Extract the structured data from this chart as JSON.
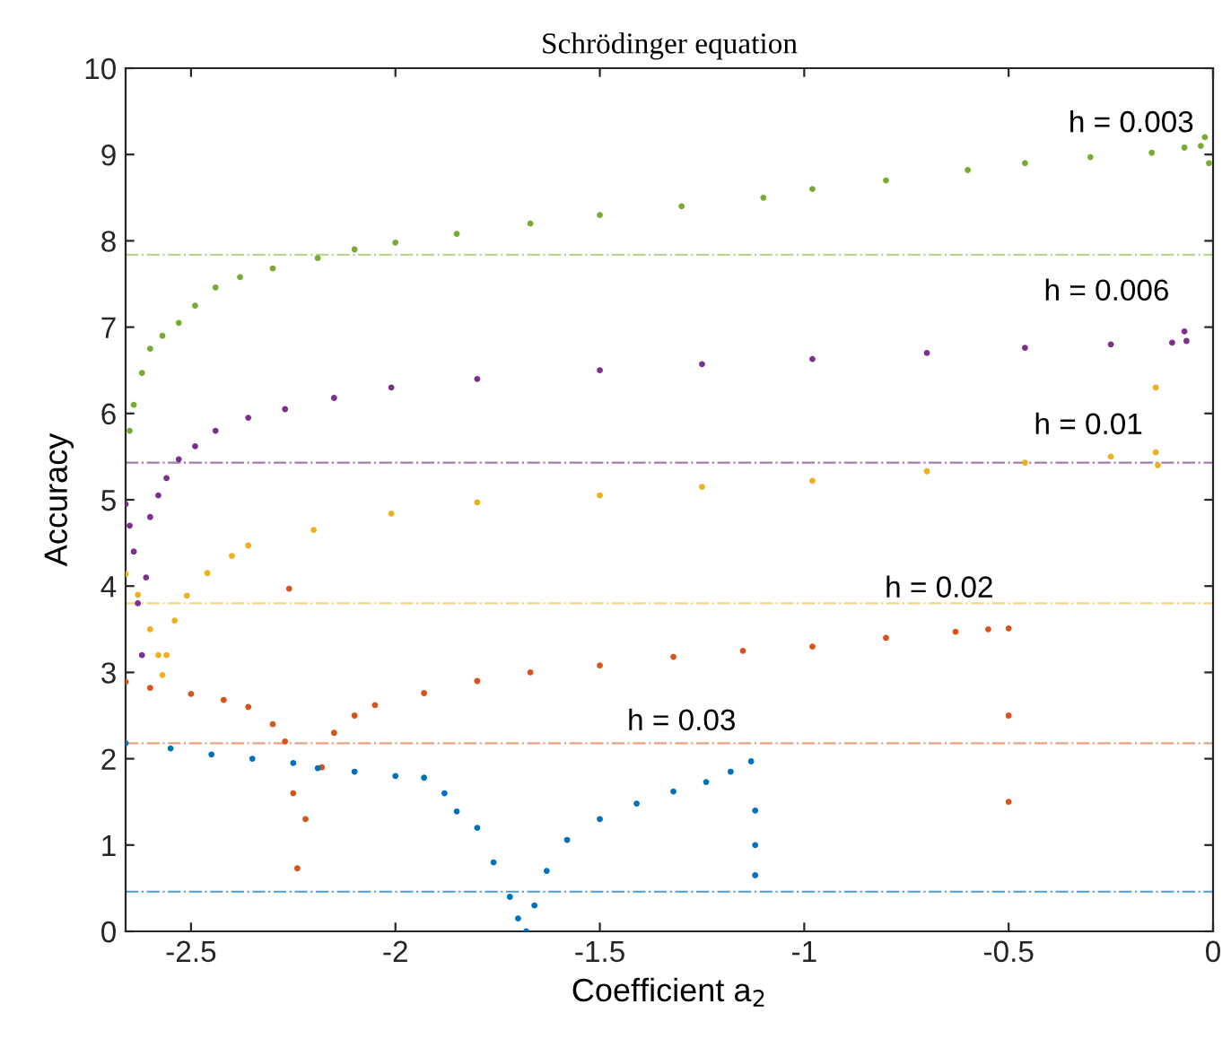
{
  "chart_data": {
    "type": "scatter",
    "title": "Schrödinger equation",
    "xlabel": "Coefficient a$_{2}$",
    "ylabel": "Accuracy",
    "xlim": [
      -2.66,
      0
    ],
    "ylim": [
      0,
      10
    ],
    "xticks": [
      -2.5,
      -2,
      -1.5,
      -1,
      -0.5,
      0
    ],
    "yticks": [
      0,
      1,
      2,
      3,
      4,
      5,
      6,
      7,
      8,
      9,
      10
    ],
    "grid": false,
    "legend": false,
    "marker": "circle",
    "series": [
      {
        "name": "h = 0.003",
        "color": "#77ac30",
        "x": [
          -2.65,
          -2.64,
          -2.62,
          -2.6,
          -2.57,
          -2.53,
          -2.49,
          -2.44,
          -2.38,
          -2.3,
          -2.19,
          -2.1,
          -2.0,
          -1.85,
          -1.67,
          -1.5,
          -1.3,
          -1.1,
          -0.98,
          -0.8,
          -0.6,
          -0.46,
          -0.3,
          -0.15,
          -0.07,
          -0.03,
          -0.02,
          -0.01
        ],
        "values": [
          5.8,
          6.1,
          6.47,
          6.75,
          6.9,
          7.05,
          7.25,
          7.46,
          7.58,
          7.68,
          7.8,
          7.9,
          7.98,
          8.08,
          8.2,
          8.3,
          8.4,
          8.5,
          8.6,
          8.7,
          8.82,
          8.9,
          8.97,
          9.02,
          9.08,
          9.1,
          9.2,
          8.9
        ]
      },
      {
        "name": "h = 0.006",
        "color": "#7e2f8e",
        "x": [
          -2.66,
          -2.65,
          -2.64,
          -2.63,
          -2.62,
          -2.61,
          -2.6,
          -2.58,
          -2.56,
          -2.53,
          -2.49,
          -2.44,
          -2.36,
          -2.27,
          -2.15,
          -2.01,
          -1.8,
          -1.5,
          -1.25,
          -0.98,
          -0.7,
          -0.46,
          -0.25,
          -0.1,
          -0.065,
          -0.07
        ],
        "values": [
          4.95,
          4.7,
          4.4,
          3.8,
          3.2,
          4.1,
          4.8,
          5.05,
          5.25,
          5.47,
          5.62,
          5.8,
          5.95,
          6.05,
          6.18,
          6.3,
          6.4,
          6.5,
          6.57,
          6.63,
          6.7,
          6.76,
          6.8,
          6.82,
          6.84,
          6.95
        ]
      },
      {
        "name": "h = 0.01",
        "color": "#edb120",
        "x": [
          -2.66,
          -2.63,
          -2.6,
          -2.58,
          -2.57,
          -2.56,
          -2.54,
          -2.51,
          -2.46,
          -2.4,
          -2.36,
          -2.2,
          -2.01,
          -1.8,
          -1.5,
          -1.25,
          -0.98,
          -0.7,
          -0.46,
          -0.25,
          -0.14,
          -0.14,
          -0.135
        ],
        "values": [
          4.14,
          3.9,
          3.5,
          3.2,
          2.97,
          3.2,
          3.6,
          3.89,
          4.15,
          4.35,
          4.47,
          4.65,
          4.84,
          4.97,
          5.05,
          5.15,
          5.22,
          5.33,
          5.43,
          5.5,
          6.3,
          5.55,
          5.4
        ]
      },
      {
        "name": "h = 0.02",
        "color": "#d95319",
        "x": [
          -2.66,
          -2.6,
          -2.5,
          -2.42,
          -2.36,
          -2.3,
          -2.27,
          -2.26,
          -2.25,
          -2.24,
          -2.22,
          -2.18,
          -2.15,
          -2.1,
          -2.05,
          -1.93,
          -1.8,
          -1.67,
          -1.5,
          -1.32,
          -1.15,
          -0.98,
          -0.8,
          -0.63,
          -0.5,
          -0.5,
          -0.55,
          -0.5
        ],
        "values": [
          2.89,
          2.82,
          2.75,
          2.68,
          2.6,
          2.4,
          2.2,
          3.97,
          1.6,
          0.73,
          1.3,
          1.9,
          2.3,
          2.5,
          2.62,
          2.76,
          2.9,
          3.0,
          3.08,
          3.18,
          3.25,
          3.3,
          3.4,
          3.47,
          2.5,
          1.5,
          3.5,
          3.51
        ]
      },
      {
        "name": "h = 0.03",
        "color": "#0072bd",
        "x": [
          -2.66,
          -2.55,
          -2.45,
          -2.35,
          -2.25,
          -2.19,
          -2.1,
          -2.0,
          -1.93,
          -1.88,
          -1.85,
          -1.8,
          -1.76,
          -1.72,
          -1.7,
          -1.68,
          -1.66,
          -1.63,
          -1.58,
          -1.5,
          -1.41,
          -1.32,
          -1.24,
          -1.12,
          -1.12,
          -1.12,
          -1.18,
          -1.13
        ],
        "values": [
          2.18,
          2.12,
          2.05,
          2.0,
          1.95,
          1.89,
          1.85,
          1.8,
          1.78,
          1.6,
          1.39,
          1.2,
          0.8,
          0.4,
          0.15,
          0.0,
          0.3,
          0.7,
          1.06,
          1.3,
          1.48,
          1.62,
          1.73,
          1.4,
          1.0,
          0.65,
          1.85,
          1.97
        ]
      }
    ],
    "ref_lines": [
      {
        "axis": "y",
        "value": 7.84,
        "color": "#b7d88c",
        "line_style": "dashdot"
      },
      {
        "axis": "y",
        "value": 5.43,
        "color": "#a67bb0",
        "line_style": "dashdot"
      },
      {
        "axis": "y",
        "value": 3.8,
        "color": "#f5d38a",
        "line_style": "dashdot"
      },
      {
        "axis": "y",
        "value": 2.18,
        "color": "#eda07e",
        "line_style": "dashdot"
      },
      {
        "axis": "y",
        "value": 0.46,
        "color": "#4d9cd3",
        "line_style": "dashdot"
      }
    ]
  }
}
